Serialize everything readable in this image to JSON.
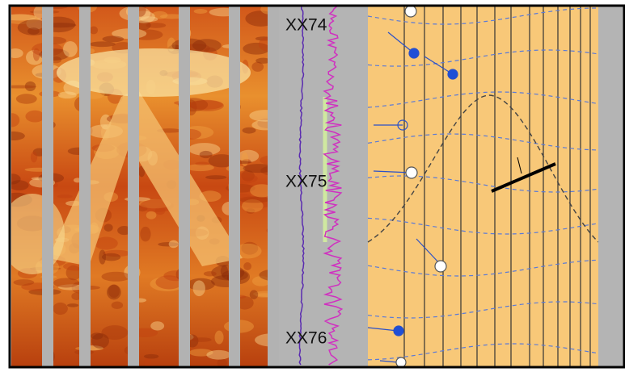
{
  "track": {
    "depth_labels": [
      "XX74",
      "XX75",
      "XX76"
    ]
  }
}
